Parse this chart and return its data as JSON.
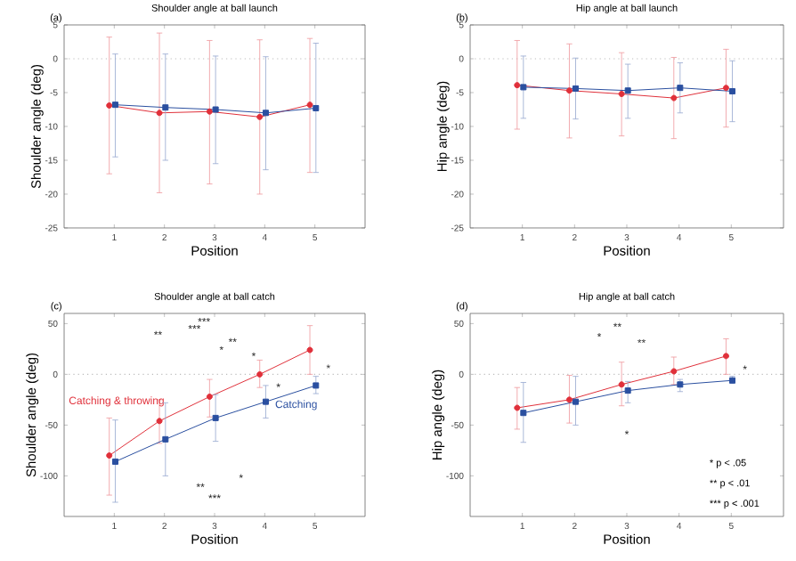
{
  "chart_data": [
    {
      "type": "line",
      "title": "Shoulder angle at ball launch",
      "xlabel": "Position",
      "ylabel": "Shoulder angle (deg)",
      "xlim": [
        0,
        6
      ],
      "xticks": [
        1,
        2,
        3,
        4,
        5
      ],
      "ylim": [
        -25,
        5
      ],
      "yticks": [
        -25,
        -20,
        -15,
        -10,
        -5,
        0,
        5
      ],
      "series": [
        {
          "color": "#e0303a",
          "marker": "circle",
          "x": [
            0.9,
            1.9,
            2.9,
            3.9,
            4.9
          ],
          "values": [
            -6.9,
            -8.0,
            -7.8,
            -8.6,
            -6.8
          ],
          "errors": [
            [
              -17,
              3.2
            ],
            [
              -19.8,
              3.8
            ],
            [
              -18.5,
              2.7
            ],
            [
              -20,
              2.8
            ],
            [
              -16.8,
              3.0
            ]
          ]
        },
        {
          "color": "#2a4fa0",
          "marker": "square",
          "x": [
            1.02,
            2.02,
            3.02,
            4.02,
            5.02
          ],
          "values": [
            -6.8,
            -7.2,
            -7.5,
            -8.0,
            -7.3
          ],
          "errors": [
            [
              -14.5,
              0.7
            ],
            [
              -15,
              0.7
            ],
            [
              -15.5,
              0.4
            ],
            [
              -16.4,
              0.3
            ],
            [
              -16.8,
              2.3
            ]
          ]
        }
      ],
      "ref_lines": [
        {
          "axis": "y",
          "value": 0,
          "color": "#bbbbbb",
          "line_style": "dotted"
        }
      ],
      "annotations": [
        "(a)"
      ]
    },
    {
      "type": "line",
      "title": "Hip angle at ball launch",
      "xlabel": "Position",
      "ylabel": "Hip angle (deg)",
      "xlim": [
        0,
        6
      ],
      "xticks": [
        1,
        2,
        3,
        4,
        5
      ],
      "ylim": [
        -25,
        5
      ],
      "yticks": [
        -25,
        -20,
        -15,
        -10,
        -5,
        0,
        5
      ],
      "series": [
        {
          "color": "#e0303a",
          "marker": "circle",
          "x": [
            0.9,
            1.9,
            2.9,
            3.9,
            4.9
          ],
          "values": [
            -3.9,
            -4.7,
            -5.2,
            -5.8,
            -4.3
          ],
          "errors": [
            [
              -10.4,
              2.7
            ],
            [
              -11.7,
              2.2
            ],
            [
              -11.4,
              0.9
            ],
            [
              -11.8,
              0.2
            ],
            [
              -10.1,
              1.4
            ]
          ]
        },
        {
          "color": "#2a4fa0",
          "marker": "square",
          "x": [
            1.02,
            2.02,
            3.02,
            4.02,
            5.02
          ],
          "values": [
            -4.2,
            -4.4,
            -4.7,
            -4.3,
            -4.8
          ],
          "errors": [
            [
              -8.8,
              0.4
            ],
            [
              -8.9,
              0.1
            ],
            [
              -8.8,
              -0.8
            ],
            [
              -8.0,
              -0.6
            ],
            [
              -9.3,
              -0.3
            ]
          ]
        }
      ],
      "ref_lines": [
        {
          "axis": "y",
          "value": 0,
          "color": "#bbbbbb",
          "line_style": "dotted"
        }
      ],
      "annotations": [
        "(b)"
      ]
    },
    {
      "type": "line",
      "title": "Shoulder angle at ball catch",
      "xlabel": "Position",
      "ylabel": "Shoulder angle (deg)",
      "xlim": [
        0,
        6
      ],
      "xticks": [
        1,
        2,
        3,
        4,
        5
      ],
      "ylim": [
        -140,
        60
      ],
      "yticks": [
        -100,
        -50,
        0,
        50
      ],
      "series": [
        {
          "name": "Catching & throwing",
          "color": "#e0303a",
          "marker": "circle",
          "x": [
            0.9,
            1.9,
            2.9,
            3.9,
            4.9
          ],
          "values": [
            -80,
            -46,
            -22,
            0,
            24
          ],
          "errors": [
            [
              -119,
              -43
            ],
            [
              -68,
              -25
            ],
            [
              -42,
              -5
            ],
            [
              -13,
              14
            ],
            [
              0,
              48
            ]
          ]
        },
        {
          "name": "Catching",
          "color": "#2a4fa0",
          "marker": "square",
          "x": [
            1.02,
            2.02,
            3.02,
            4.02,
            5.02
          ],
          "values": [
            -86,
            -64,
            -43,
            -27,
            -11
          ],
          "errors": [
            [
              -126,
              -45
            ],
            [
              -100,
              -28
            ],
            [
              -66,
              -20
            ],
            [
              -43,
              -11
            ],
            [
              -19,
              -2
            ]
          ]
        }
      ],
      "ref_lines": [
        {
          "axis": "y",
          "value": 0,
          "color": "#bbbbbb",
          "line_style": "dotted"
        }
      ],
      "annotations": [
        "(c)",
        "***",
        "***",
        "**",
        "**",
        "*",
        "*",
        "*",
        "*",
        "*",
        "**",
        "***"
      ]
    },
    {
      "type": "line",
      "title": "Hip angle at ball catch",
      "xlabel": "Position",
      "ylabel": "Hip angle (deg)",
      "xlim": [
        0,
        6
      ],
      "xticks": [
        1,
        2,
        3,
        4,
        5
      ],
      "ylim": [
        -140,
        60
      ],
      "yticks": [
        -100,
        -50,
        0,
        50
      ],
      "series": [
        {
          "color": "#e0303a",
          "marker": "circle",
          "x": [
            0.9,
            1.9,
            2.9,
            3.9,
            4.9
          ],
          "values": [
            -33,
            -25,
            -10,
            3,
            18
          ],
          "errors": [
            [
              -54,
              -13
            ],
            [
              -48,
              -1
            ],
            [
              -31,
              12
            ],
            [
              -10,
              17
            ],
            [
              0,
              35
            ]
          ]
        },
        {
          "color": "#2a4fa0",
          "marker": "square",
          "x": [
            1.02,
            2.02,
            3.02,
            4.02,
            5.02
          ],
          "values": [
            -38,
            -27,
            -16,
            -10,
            -6
          ],
          "errors": [
            [
              -67,
              -8
            ],
            [
              -50,
              -2
            ],
            [
              -28,
              -7
            ],
            [
              -17,
              -5
            ],
            [
              -9,
              -2
            ]
          ]
        }
      ],
      "ref_lines": [
        {
          "axis": "y",
          "value": 0,
          "color": "#bbbbbb",
          "line_style": "dotted"
        }
      ],
      "annotations": [
        "(d)",
        "**",
        "*",
        "**",
        "*",
        "*",
        "*   p < .05",
        "**  p < .01",
        "*** p < .001"
      ]
    }
  ]
}
